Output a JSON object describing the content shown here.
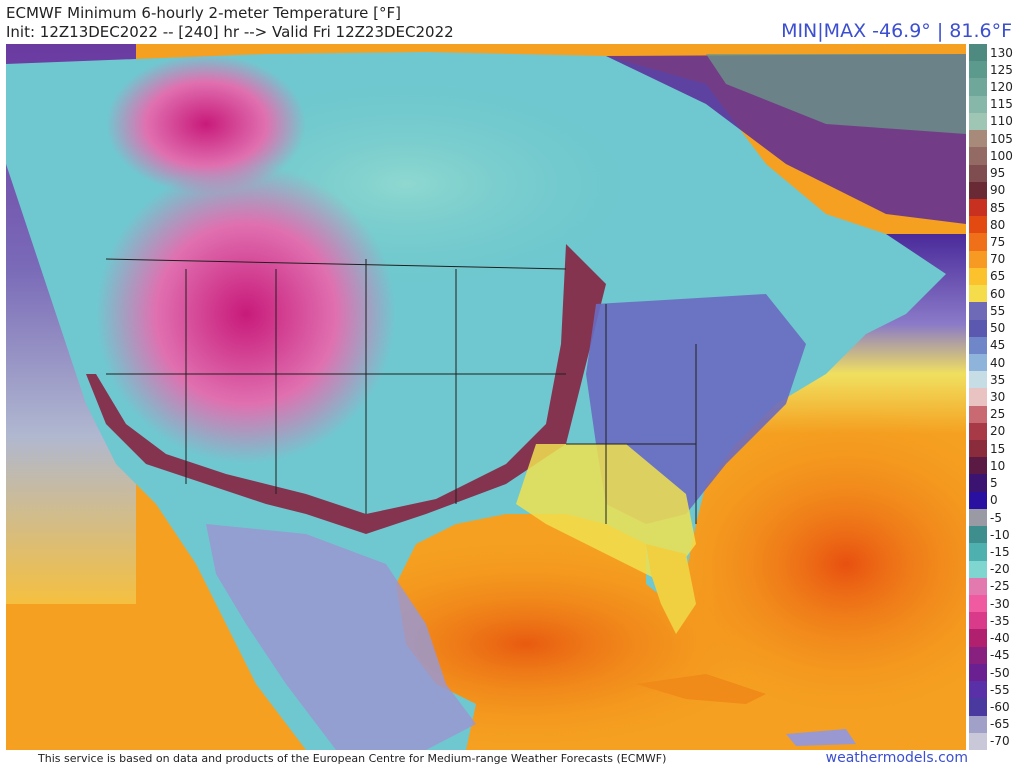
{
  "header": {
    "title": "ECMWF Minimum 6-hourly 2-meter Temperature [°F]",
    "subtitle": "Init: 12Z13DEC2022 -- [240] hr --> Valid Fri 12Z23DEC2022",
    "minmax": "MIN|MAX -46.9° | 81.6°F"
  },
  "colorbar": {
    "ticks": [
      "130",
      "125",
      "120",
      "115",
      "110",
      "105",
      "100",
      "95",
      "90",
      "85",
      "80",
      "75",
      "70",
      "65",
      "60",
      "55",
      "50",
      "45",
      "40",
      "35",
      "30",
      "25",
      "20",
      "15",
      "10",
      "5",
      "0",
      "-5",
      "-10",
      "-15",
      "-20",
      "-25",
      "-30",
      "-35",
      "-40",
      "-45",
      "-50",
      "-55",
      "-60",
      "-65",
      "-70"
    ],
    "colors": [
      "#4f8a80",
      "#5d9a8e",
      "#6fa89a",
      "#86b7a8",
      "#9fc5b4",
      "#a88a7a",
      "#946a64",
      "#7f4d50",
      "#6a2a35",
      "#c8301f",
      "#e24a12",
      "#f0701a",
      "#f79a24",
      "#fbc22e",
      "#f4dc4a",
      "#6f6ab8",
      "#5b58b0",
      "#6f86c8",
      "#8fb4dc",
      "#c6dde6",
      "#e9c2c2",
      "#c96a72",
      "#a83a48",
      "#8a2c3c",
      "#5a1a44",
      "#3a1470",
      "#2a10a0",
      "#9a9aa4",
      "#3f8e8e",
      "#4fb0b0",
      "#7fd6d0",
      "#e27ab0",
      "#f05aa0",
      "#d93a8a",
      "#b0206e",
      "#882080",
      "#6a2090",
      "#5a30a8",
      "#4a3aa0",
      "#a0a0c8",
      "#c8c8d8"
    ]
  },
  "footer": {
    "attribution": "This service is based on data and products of the European Centre for Medium-range Weather Forecasts (ECMWF)",
    "brand": "weathermodels.com"
  },
  "map": {
    "colors": {
      "ocean_warm": "#f5a020",
      "ocean_hot": "#e86010",
      "pacific_cool": "#9070c0",
      "arctic_cold": "#7fd6d0",
      "extreme_cold": "#e070b0",
      "frigid_purple": "#4a1a8a",
      "mild_blue": "#6a6ac0",
      "warm_yellow": "#f0e050",
      "border": "#202020"
    }
  }
}
